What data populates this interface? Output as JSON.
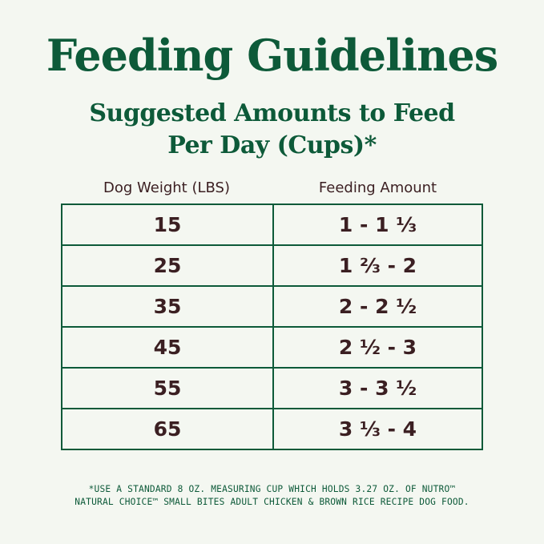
{
  "title": "Feeding Guidelines",
  "subtitle_line1": "Suggested Amounts to Feed",
  "subtitle_line2": "Per Day (Cups)*",
  "table": {
    "headers": [
      "Dog Weight (LBS)",
      "Feeding Amount"
    ],
    "rows": [
      [
        "15",
        "1 - 1 ⅓"
      ],
      [
        "25",
        "1 ⅔ - 2"
      ],
      [
        "35",
        "2 - 2 ½"
      ],
      [
        "45",
        "2 ½ - 3"
      ],
      [
        "55",
        "3 - 3 ½"
      ],
      [
        "65",
        "3 ⅓ - 4"
      ]
    ]
  },
  "footnote_line1": "*USE A STANDARD 8 OZ. MEASURING CUP WHICH HOLDS 3.27 OZ. OF NUTRO™",
  "footnote_line2": "NATURAL CHOICE™ SMALL BITES ADULT CHICKEN & BROWN RICE RECIPE DOG FOOD.",
  "colors": {
    "background": "#f4f7f1",
    "green": "#0d5a39",
    "brown": "#3b1f22"
  }
}
